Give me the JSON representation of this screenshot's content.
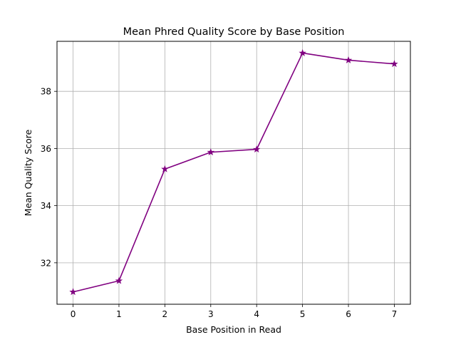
{
  "chart_data": {
    "type": "line",
    "title": "Mean Phred Quality Score by Base Position",
    "xlabel": "Base Position in Read",
    "ylabel": "Mean Quality Score",
    "x": [
      0,
      1,
      2,
      3,
      4,
      5,
      6,
      7
    ],
    "xticks": [
      "0",
      "1",
      "2",
      "3",
      "4",
      "5",
      "6",
      "7"
    ],
    "yticks": [
      32,
      34,
      36,
      38
    ],
    "yticklabels": [
      "32",
      "34",
      "36",
      "38"
    ],
    "xlim": [
      -0.35,
      7.35
    ],
    "ylim": [
      30.55,
      39.75
    ],
    "grid": true,
    "series": [
      {
        "values": [
          30.98,
          31.37,
          35.28,
          35.87,
          35.97,
          39.34,
          39.09,
          38.96
        ],
        "color": "#800080",
        "marker": "star"
      }
    ]
  }
}
